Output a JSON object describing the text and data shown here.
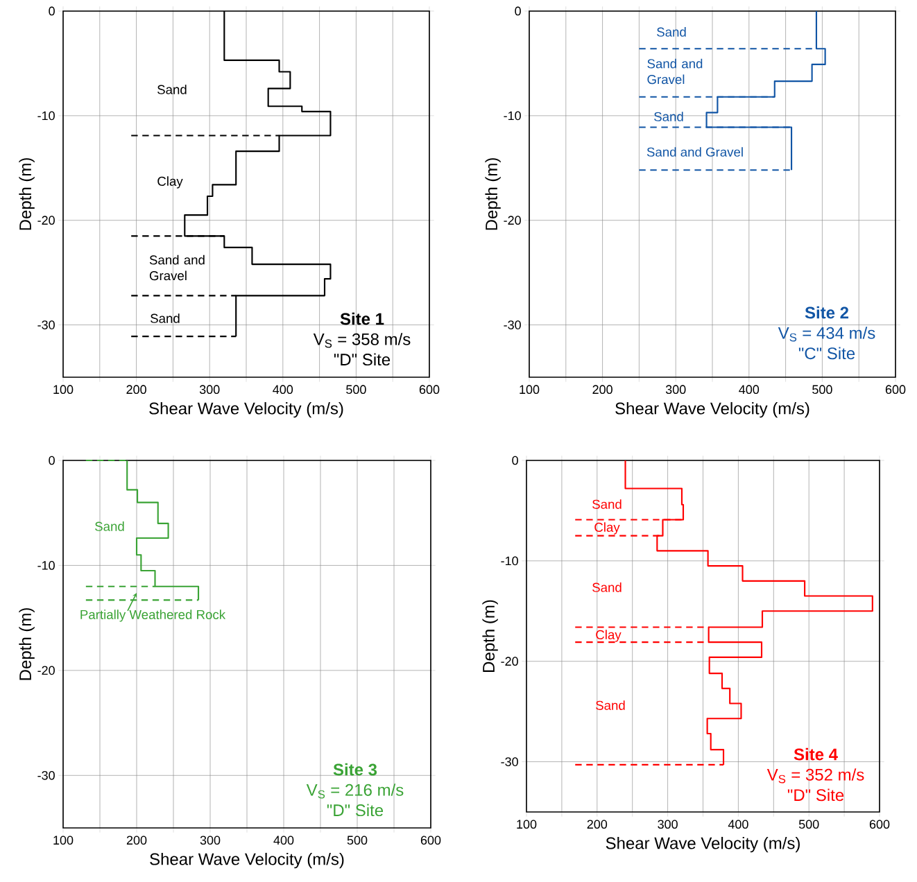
{
  "chart_data": [
    {
      "type": "line",
      "xlabel": "Shear Wave Velocity (m/s)",
      "ylabel": "Depth (m)",
      "xlim": [
        100,
        600
      ],
      "ylim": [
        -35,
        0
      ],
      "xticks": [
        100,
        {
          "value": 150,
          "label": null
        },
        200,
        {
          "value": 250,
          "label": null
        },
        300,
        {
          "value": 350,
          "label": null
        },
        400,
        {
          "value": 450,
          "label": null
        },
        500,
        {
          "value": 550,
          "label": null
        },
        600
      ],
      "yticks": [
        -30,
        -20,
        -10,
        0
      ],
      "grid": true,
      "series": [
        {
          "color": "#000000",
          "line_style": "solid",
          "x": [
            320,
            320,
            395,
            395,
            410,
            410,
            380,
            380,
            426,
            426,
            465,
            465,
            395,
            395,
            336,
            336,
            304,
            304,
            297,
            297,
            266,
            266,
            320,
            320,
            358,
            358,
            465,
            465,
            457,
            457,
            336,
            336
          ],
          "values": [
            0,
            -4.7,
            -4.7,
            -5.8,
            -5.8,
            -7.4,
            -7.4,
            -9.1,
            -9.1,
            -9.6,
            -9.6,
            -11.9,
            -11.9,
            -13.4,
            -13.4,
            -16.6,
            -16.6,
            -17.7,
            -17.7,
            -19.5,
            -19.5,
            -21.5,
            -21.5,
            -22.6,
            -22.6,
            -24.2,
            -24.2,
            -25.6,
            -25.6,
            -27.2,
            -27.2,
            -31.1
          ]
        },
        {
          "color": "#000000",
          "line_style": "dashed",
          "x": [
            193,
            395
          ],
          "values": [
            -11.9,
            -11.9
          ]
        },
        {
          "color": "#000000",
          "line_style": "dashed",
          "x": [
            193,
            320
          ],
          "values": [
            -21.5,
            -21.5
          ]
        },
        {
          "color": "#000000",
          "line_style": "dashed",
          "x": [
            193,
            336
          ],
          "values": [
            -27.2,
            -27.2
          ]
        },
        {
          "color": "#000000",
          "line_style": "dashed",
          "x": [
            193,
            336
          ],
          "values": [
            -31.1,
            -31.1
          ]
        }
      ],
      "annotations": [
        "Sand",
        "Clay",
        "Sand and Gravel",
        "Sand",
        "Site 1",
        "V$_{S}$ = 358 m/s",
        "\"D\" Site"
      ]
    },
    {
      "type": "line",
      "xlabel": "Shear Wave Velocity (m/s)",
      "ylabel": "Depth (m)",
      "xlim": [
        100,
        600
      ],
      "ylim": [
        -35,
        0
      ],
      "xticks": [
        100,
        {
          "value": 150,
          "label": null
        },
        200,
        {
          "value": 250,
          "label": null
        },
        300,
        {
          "value": 350,
          "label": null
        },
        400,
        {
          "value": 450,
          "label": null
        },
        500,
        {
          "value": 550,
          "label": null
        },
        600
      ],
      "yticks": [
        -30,
        -20,
        -10,
        0
      ],
      "grid": true,
      "series": [
        {
          "color": "#1155a5",
          "line_style": "solid",
          "x": [
            492,
            492,
            504,
            504,
            486,
            486,
            435,
            435,
            357,
            357,
            342,
            342,
            458,
            458
          ],
          "values": [
            0,
            -3.6,
            -3.6,
            -5.1,
            -5.1,
            -6.7,
            -6.7,
            -8.2,
            -8.2,
            -9.7,
            -9.7,
            -11.1,
            -11.1,
            -15.2
          ]
        },
        {
          "color": "#1155a5",
          "line_style": "dashed",
          "x": [
            250,
            492
          ],
          "values": [
            -3.6,
            -3.6
          ]
        },
        {
          "color": "#1155a5",
          "line_style": "dashed",
          "x": [
            250,
            435
          ],
          "values": [
            -8.2,
            -8.2
          ]
        },
        {
          "color": "#1155a5",
          "line_style": "dashed",
          "x": [
            250,
            458
          ],
          "values": [
            -11.1,
            -11.1
          ]
        },
        {
          "color": "#1155a5",
          "line_style": "dashed",
          "x": [
            250,
            458
          ],
          "values": [
            -15.2,
            -15.2
          ]
        }
      ],
      "annotations": [
        "Sand",
        "Sand and Gravel",
        "Sand",
        "Sand and Gravel",
        "Site 2",
        "V$_{S}$ = 434 m/s",
        "\"C\" Site"
      ]
    },
    {
      "type": "line",
      "xlabel": "Shear Wave Velocity (m/s)",
      "ylabel": "Depth (m)",
      "xlim": [
        100,
        600
      ],
      "ylim": [
        -35,
        0
      ],
      "xticks": [
        100,
        {
          "value": 150,
          "label": null
        },
        200,
        {
          "value": 250,
          "label": null
        },
        300,
        {
          "value": 350,
          "label": null
        },
        400,
        {
          "value": 450,
          "label": null
        },
        500,
        {
          "value": 550,
          "label": null
        },
        600
      ],
      "yticks": [
        -30,
        -20,
        -10,
        0
      ],
      "grid": true,
      "series": [
        {
          "color": "#3aa335",
          "line_style": "solid",
          "x": [
            187,
            187,
            201,
            201,
            229,
            229,
            243,
            243,
            200,
            200,
            206,
            206,
            225,
            225,
            284,
            284
          ],
          "values": [
            0,
            -2.8,
            -2.8,
            -4.0,
            -4.0,
            -6.0,
            -6.0,
            -7.4,
            -7.4,
            -9.0,
            -9.0,
            -10.5,
            -10.5,
            -12.0,
            -12.0,
            -13.3
          ]
        },
        {
          "color": "#3aa335",
          "line_style": "dashed",
          "x": [
            131,
            187
          ],
          "values": [
            0,
            0
          ]
        },
        {
          "color": "#3aa335",
          "line_style": "dashed",
          "x": [
            131,
            225
          ],
          "values": [
            -12.0,
            -12.0
          ]
        },
        {
          "color": "#3aa335",
          "line_style": "dashed",
          "x": [
            131,
            284
          ],
          "values": [
            -13.3,
            -13.3
          ]
        }
      ],
      "annotations": [
        "Sand",
        "Partially Weathered Rock",
        "Site 3",
        "V$_{S}$ = 216 m/s",
        "\"D\" Site"
      ]
    },
    {
      "type": "line",
      "xlabel": "Shear Wave Velocity (m/s)",
      "ylabel": "Depth (m)",
      "xlim": [
        100,
        600
      ],
      "ylim": [
        -35,
        0
      ],
      "xticks": [
        100,
        {
          "value": 150,
          "label": null
        },
        200,
        {
          "value": 250,
          "label": null
        },
        300,
        {
          "value": 350,
          "label": null
        },
        400,
        {
          "value": 450,
          "label": null
        },
        500,
        {
          "value": 550,
          "label": null
        },
        600
      ],
      "yticks": [
        -30,
        -20,
        -10,
        0
      ],
      "grid": true,
      "series": [
        {
          "color": "#ff0000",
          "line_style": "solid",
          "x": [
            240,
            240,
            320,
            320,
            322,
            322,
            293,
            293,
            285,
            285,
            357,
            357,
            406,
            406,
            494,
            494,
            590,
            590,
            434,
            434,
            358,
            358,
            433,
            433,
            359,
            359,
            377,
            377,
            388,
            388,
            404,
            404,
            356,
            356,
            361,
            361,
            379,
            379
          ],
          "values": [
            0,
            -2.8,
            -2.8,
            -4.4,
            -4.4,
            -5.9,
            -5.9,
            -7.5,
            -7.5,
            -9.0,
            -9.0,
            -10.5,
            -10.5,
            -12.0,
            -12.0,
            -13.5,
            -13.5,
            -15.0,
            -15.0,
            -16.6,
            -16.6,
            -18.1,
            -18.1,
            -19.6,
            -19.6,
            -21.2,
            -21.2,
            -22.7,
            -22.7,
            -24.2,
            -24.2,
            -25.7,
            -25.7,
            -27.2,
            -27.2,
            -28.8,
            -28.8,
            -30.3
          ]
        },
        {
          "color": "#ff0000",
          "line_style": "dashed",
          "x": [
            169,
            322
          ],
          "values": [
            -5.9,
            -5.9
          ]
        },
        {
          "color": "#ff0000",
          "line_style": "dashed",
          "x": [
            169,
            293
          ],
          "values": [
            -7.5,
            -7.5
          ]
        },
        {
          "color": "#ff0000",
          "line_style": "dashed",
          "x": [
            169,
            358
          ],
          "values": [
            -16.6,
            -16.6
          ]
        },
        {
          "color": "#ff0000",
          "line_style": "dashed",
          "x": [
            169,
            358
          ],
          "values": [
            -18.1,
            -18.1
          ]
        },
        {
          "color": "#ff0000",
          "line_style": "dashed",
          "x": [
            169,
            379
          ],
          "values": [
            -30.3,
            -30.3
          ]
        }
      ],
      "annotations": [
        "Sand",
        "Clay",
        "Sand",
        "Clay",
        "Sand",
        "Site 4",
        "V$_{S}$ = 352 m/s",
        "\"D\" Site"
      ]
    }
  ]
}
